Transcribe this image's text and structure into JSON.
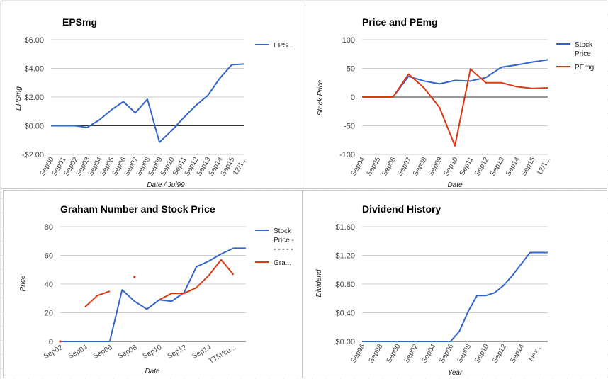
{
  "chart_data": [
    {
      "type": "line",
      "title": "EPSmg",
      "xlabel": "Date / Jul99",
      "ylabel": "EPSmg",
      "categories": [
        "Sep00",
        "Sep01",
        "Sep02",
        "Sep03",
        "Sep04",
        "Sep05",
        "Sep06",
        "Sep07",
        "Sep08",
        "Sep09",
        "Sep10",
        "Sep11",
        "Sep12",
        "Sep13",
        "Sep14",
        "Sep15",
        "12/1..."
      ],
      "ylim": [
        -2,
        6
      ],
      "yticks": [
        -2,
        0,
        2,
        4,
        6
      ],
      "ytick_labels": [
        "-$2.00",
        "$0.00",
        "$2.00",
        "$4.00",
        "$6.00"
      ],
      "series": [
        {
          "name": "EPS...",
          "color": "#3366cc",
          "x": [
            0,
            1,
            2,
            3,
            4,
            5,
            6,
            7,
            8,
            9,
            10,
            11,
            12,
            13,
            14,
            15,
            16
          ],
          "values": [
            0.0,
            0.0,
            0.0,
            -0.12,
            0.4,
            1.1,
            1.68,
            0.9,
            1.85,
            -1.15,
            -0.35,
            0.55,
            1.4,
            2.1,
            3.3,
            4.25,
            4.3
          ]
        }
      ]
    },
    {
      "type": "line",
      "title": "Price and PEmg",
      "xlabel": "Date",
      "ylabel": "Stock Price",
      "categories": [
        "Sep04",
        "Sep05",
        "Sep06",
        "Sep07",
        "Sep08",
        "Sep09",
        "Sep10",
        "Sep11",
        "Sep12",
        "Sep13",
        "Sep14",
        "Sep15",
        "12/1..."
      ],
      "ylim": [
        -100,
        100
      ],
      "yticks": [
        -100,
        -50,
        0,
        50,
        100
      ],
      "ytick_labels": [
        "-100",
        "-50",
        "0",
        "50",
        "100"
      ],
      "series": [
        {
          "name": "Stock Price",
          "color": "#3366cc",
          "x": [
            0,
            1,
            2,
            3,
            4,
            5,
            6,
            7,
            8,
            9,
            10,
            11,
            12
          ],
          "values": [
            0,
            0,
            0,
            36,
            28,
            23,
            29,
            28,
            34,
            52,
            56,
            61,
            65
          ]
        },
        {
          "name": "PEmg",
          "color": "#dc3912",
          "x": [
            0,
            1,
            2,
            3,
            4,
            5,
            6,
            7,
            8,
            9,
            10,
            11,
            12
          ],
          "values": [
            0,
            0,
            0,
            40,
            16,
            -18,
            -85,
            49,
            25,
            25,
            18,
            15,
            16
          ]
        }
      ]
    },
    {
      "type": "line",
      "title": "Graham Number and Stock Price",
      "xlabel": "Date",
      "ylabel": "Price",
      "categories": [
        "Sep02",
        "Sep04",
        "Sep06",
        "Sep08",
        "Sep10",
        "Sep12",
        "Sep14",
        "TTM/cu..."
      ],
      "x_positions": [
        0,
        2,
        4,
        6,
        8,
        10,
        12,
        14
      ],
      "ylim": [
        0,
        80
      ],
      "yticks": [
        0,
        20,
        40,
        60,
        80
      ],
      "ytick_labels": [
        "0",
        "20",
        "40",
        "60",
        "80"
      ],
      "series": [
        {
          "name": "Stock Price - - - - -",
          "color": "#3366cc",
          "x": [
            0,
            1,
            2,
            3,
            4,
            5,
            6,
            7,
            8,
            9,
            10,
            11,
            12,
            13,
            14,
            15
          ],
          "values": [
            0,
            0,
            0,
            0,
            0,
            36,
            28,
            22.5,
            29,
            28,
            34,
            52,
            56,
            61,
            65,
            65
          ]
        },
        {
          "name": "Gra...",
          "color": "#dc3912",
          "segments": [
            {
              "x": [
                0
              ],
              "values": [
                0
              ]
            },
            {
              "x": [
                2,
                3,
                4
              ],
              "values": [
                24,
                32,
                35
              ]
            },
            {
              "x": [
                6
              ],
              "values": [
                45
              ]
            },
            {
              "x": [
                8,
                9,
                10,
                11,
                12,
                13,
                14
              ],
              "values": [
                29,
                33.5,
                33.5,
                37.5,
                46,
                57,
                46.5
              ]
            }
          ]
        }
      ]
    },
    {
      "type": "line",
      "title": "Dividend History",
      "xlabel": "Year",
      "ylabel": "Dividend",
      "categories": [
        "Sep96",
        "Sep98",
        "Sep00",
        "Sep02",
        "Sep04",
        "Sep06",
        "Sep08",
        "Sep10",
        "Sep12",
        "Sep14",
        "Nex..."
      ],
      "x_positions": [
        0,
        2,
        4,
        6,
        8,
        10,
        12,
        14,
        16,
        18,
        20
      ],
      "ylim": [
        0,
        1.6
      ],
      "yticks": [
        0,
        0.4,
        0.8,
        1.2,
        1.6
      ],
      "ytick_labels": [
        "$0.00",
        "$0.40",
        "$0.80",
        "$1.20",
        "$1.60"
      ],
      "series": [
        {
          "name": "",
          "color": "#3366cc",
          "x": [
            0,
            1,
            2,
            3,
            4,
            5,
            6,
            7,
            8,
            9,
            10,
            11,
            12,
            13,
            14,
            15,
            16,
            17,
            18,
            19,
            20,
            21
          ],
          "values": [
            0,
            0,
            0,
            0,
            0,
            0,
            0,
            0,
            0,
            0,
            0,
            0.14,
            0.42,
            0.64,
            0.64,
            0.68,
            0.78,
            0.92,
            1.08,
            1.24,
            1.24,
            1.24
          ]
        }
      ]
    }
  ]
}
